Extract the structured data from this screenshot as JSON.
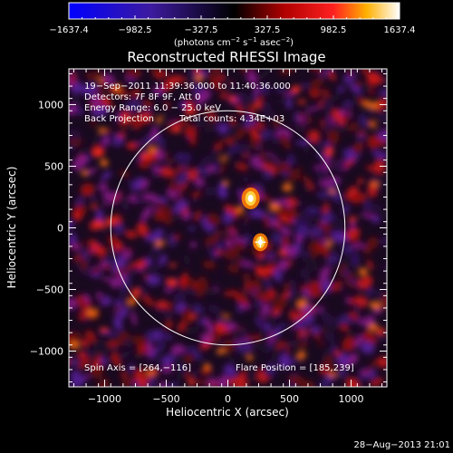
{
  "chart_data": {
    "type": "heatmap",
    "title": "Reconstructed RHESSI Image",
    "xlabel": "Heliocentric X (arcsec)",
    "ylabel": "Heliocentric Y (arcsec)",
    "xlim": [
      -1290,
      1290
    ],
    "ylim": [
      -1290,
      1290
    ],
    "xticks": [
      -1000,
      -500,
      0,
      500,
      1000
    ],
    "yticks": [
      -1000,
      -500,
      0,
      500,
      1000
    ],
    "xtick_labels": [
      "−1000",
      "−500",
      "0",
      "500",
      "1000"
    ],
    "ytick_labels": [
      "−1000",
      "−500",
      "0",
      "500",
      "1000"
    ],
    "colorbar": {
      "min": -1637.4,
      "max": 1637.4,
      "ticks": [
        -1637.4,
        -982.5,
        -327.5,
        327.5,
        982.5,
        1637.4
      ],
      "tick_labels": [
        "−1637.4",
        "−982.5",
        "−327.5",
        "327.5",
        "982.5",
        "1637.4"
      ],
      "unit_parts": [
        "(photons cm",
        "−2",
        " s",
        "−1",
        " asec",
        "−2",
        ")"
      ]
    },
    "annotations": {
      "time_range": "19−Sep−2011 11:39:36.000 to 11:40:36.000",
      "detectors": "Detectors: 7F 8F 9F, Att 0",
      "energy_range": "Energy Range: 6.0 − 25.0 keV",
      "method": "Back Projection",
      "total_counts": "Total counts: 4.34E+03",
      "spin_axis": "Spin Axis = [264,−116]",
      "flare_position": "Flare Position = [185,239]",
      "footer_timestamp": "28−Aug−2013 21:01"
    },
    "solar_limb_radius": 950,
    "sources": [
      {
        "x": 185,
        "y": 239,
        "value": 1637.4
      },
      {
        "x": 264,
        "y": -116,
        "value": 1300
      }
    ],
    "crosshair": {
      "x": 264,
      "y": -116
    }
  }
}
